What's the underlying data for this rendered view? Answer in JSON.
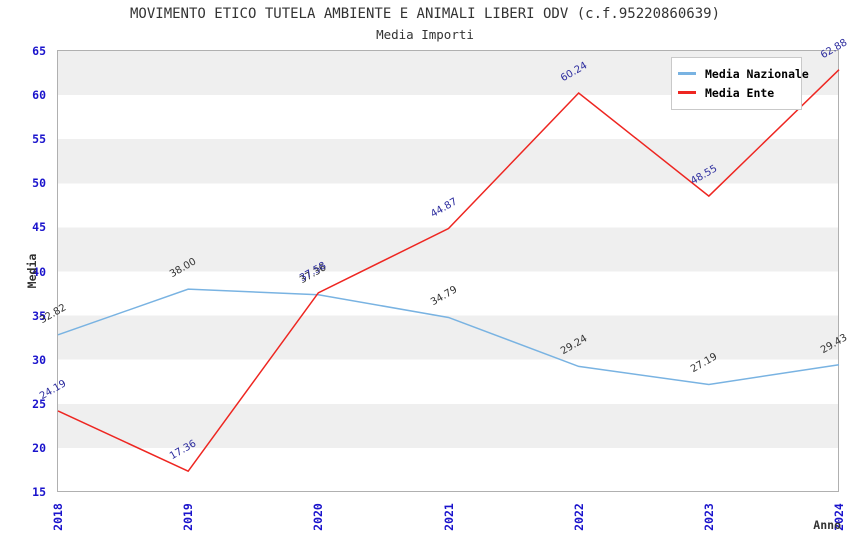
{
  "chart_data": {
    "type": "line",
    "title": "MOVIMENTO ETICO TUTELA AMBIENTE E ANIMALI LIBERI ODV (c.f.95220860639)",
    "subtitle": "Media Importi",
    "xlabel": "Anno",
    "ylabel": "Media",
    "x": [
      "2018",
      "2019",
      "2020",
      "2021",
      "2022",
      "2023",
      "2024"
    ],
    "ylim": [
      15,
      65
    ],
    "yticks": [
      65,
      60,
      55,
      50,
      45,
      40,
      35,
      30,
      25,
      20,
      15
    ],
    "grid": "horizontal-bands",
    "legend_position": "top-right",
    "series": [
      {
        "name": "Media Nazionale",
        "color": "#79b3e2",
        "label_color": "#333333",
        "values": [
          32.82,
          38.0,
          37.36,
          34.79,
          29.24,
          27.19,
          29.43
        ]
      },
      {
        "name": "Media Ente",
        "color": "#ee2621",
        "label_color": "#2b2b9e",
        "values": [
          24.19,
          17.36,
          37.58,
          44.87,
          60.24,
          48.55,
          62.88
        ]
      }
    ],
    "colors": {
      "axis_tick": "#1a13cc",
      "band": "#efefef",
      "plot_border": "#b0b0b0",
      "title_text": "#333333"
    }
  }
}
